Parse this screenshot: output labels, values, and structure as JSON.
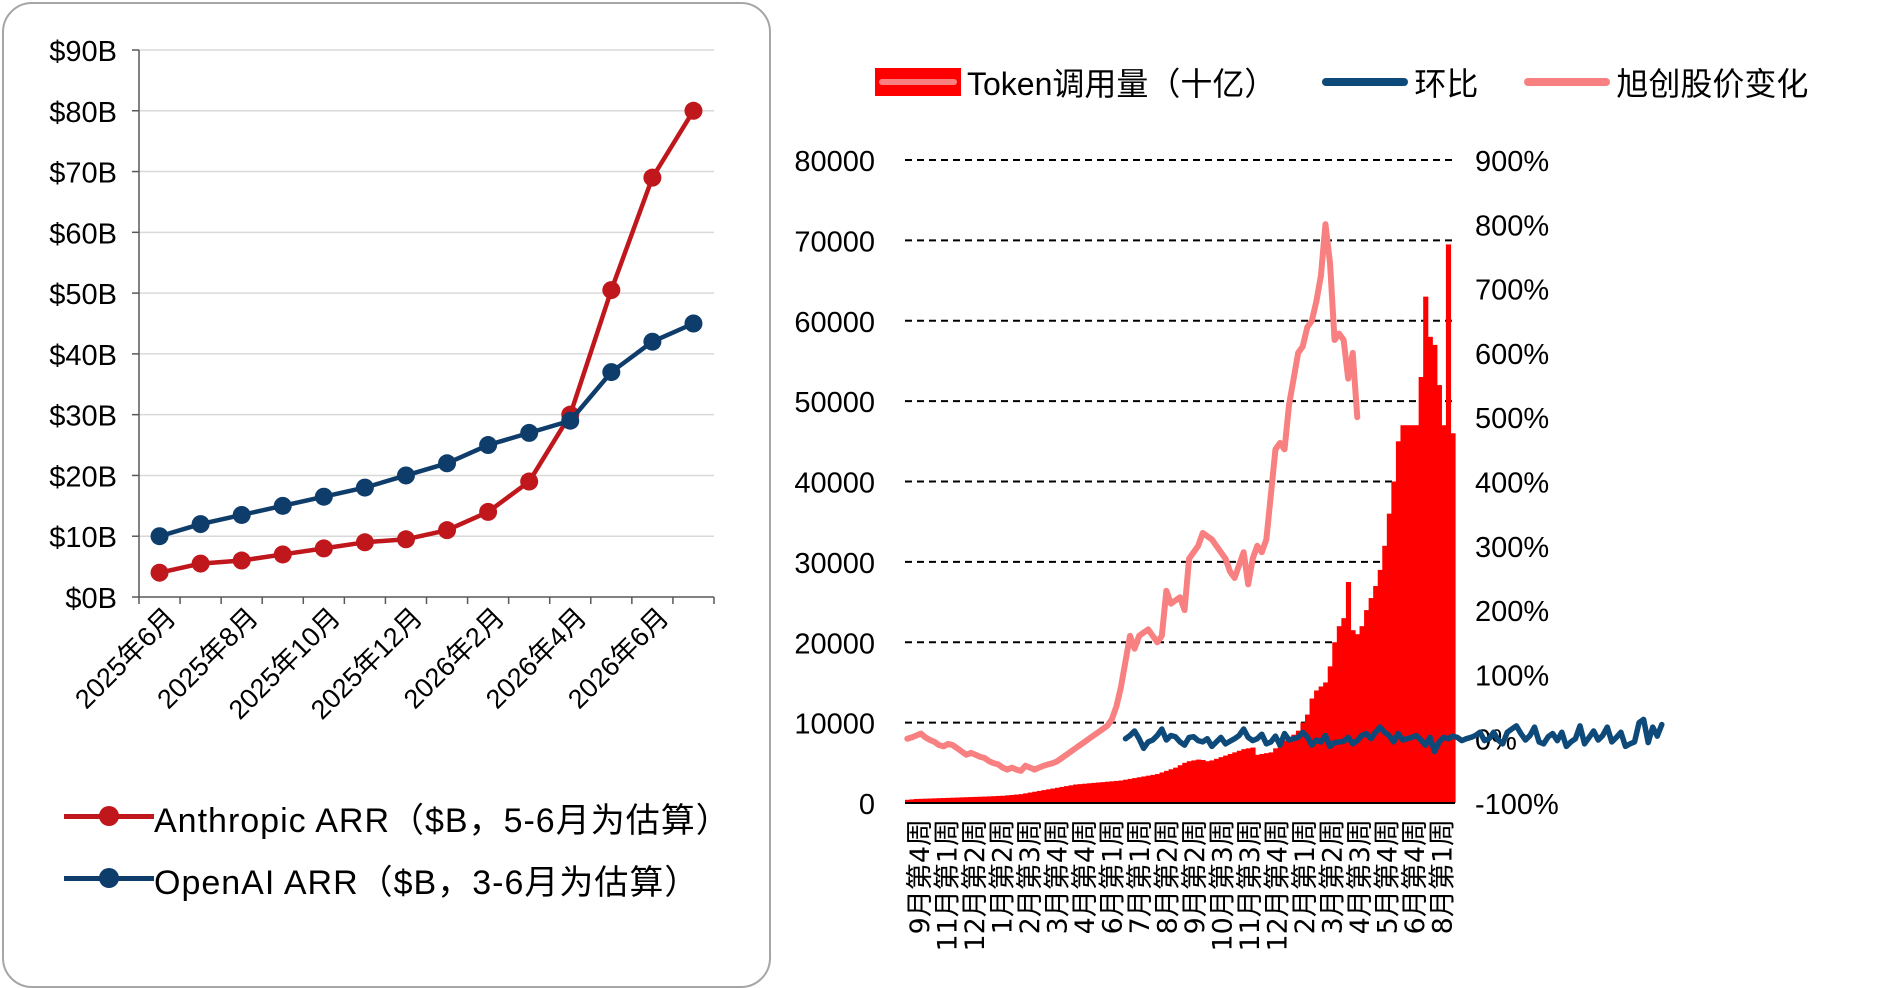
{
  "left_chart": {
    "legend": [
      {
        "label": "Anthropic ARR（$B，5-6月为估算）",
        "color": "#c0171d"
      },
      {
        "label": "OpenAI ARR（$B，3-6月为估算）",
        "color": "#0f3d6b"
      }
    ]
  },
  "right_chart": {
    "legend": [
      {
        "label": "Token调用量（十亿）",
        "color": "#ff0000",
        "kind": "bar"
      },
      {
        "label": "环比",
        "color": "#0d4a7a",
        "kind": "line"
      },
      {
        "label": "旭创股价变化",
        "color": "#f88080",
        "kind": "line"
      }
    ]
  },
  "chart_data": [
    {
      "type": "line",
      "x_tick_labels": [
        "2025年6月",
        "2025年8月",
        "2025年10月",
        "2025年12月",
        "2026年2月",
        "2026年4月",
        "2026年6月"
      ],
      "y_tick_labels": [
        "$0B",
        "$10B",
        "$20B",
        "$30B",
        "$40B",
        "$50B",
        "$60B",
        "$70B",
        "$80B",
        "$90B"
      ],
      "ylim": [
        0,
        90
      ],
      "grid": true,
      "legend_position": "bottom",
      "series": [
        {
          "name": "Anthropic ARR（$B，5-6月为估算）",
          "color": "#c0171d",
          "values": [
            4,
            5.5,
            6,
            7,
            8,
            9,
            9.5,
            11,
            14,
            19,
            30,
            50.5,
            69,
            80
          ]
        },
        {
          "name": "OpenAI ARR（$B，3-6月为估算）",
          "color": "#0f3d6b",
          "values": [
            10,
            12,
            13.5,
            15,
            16.5,
            18,
            20,
            22,
            25,
            27,
            29,
            37,
            42,
            45
          ]
        }
      ]
    },
    {
      "type": "bar",
      "x_tick_labels": [
        "9月第4周",
        "11月第1周",
        "12月第2周",
        "1月第2周",
        "2月第3周",
        "3月第4周",
        "4月第4周",
        "6月第1周",
        "7月第1周",
        "8月第2周",
        "9月第2周",
        "10月第3周",
        "11月第3周",
        "12月第4周",
        "2月第1周",
        "3月第2周",
        "4月第3周",
        "5月第4周",
        "6月第4周",
        "8月第1周"
      ],
      "y_tick_labels": [
        "0",
        "10000",
        "20000",
        "30000",
        "40000",
        "50000",
        "60000",
        "70000",
        "80000"
      ],
      "y2_tick_labels": [
        "-100%",
        "0%",
        "100%",
        "200%",
        "300%",
        "400%",
        "500%",
        "600%",
        "700%",
        "800%",
        "900%"
      ],
      "ylim": [
        0,
        80000
      ],
      "y2lim": [
        -100,
        900
      ],
      "grid": true,
      "legend_position": "top",
      "bars": {
        "name": "Token调用量（十亿）",
        "color": "#ff0000",
        "values": [
          400,
          450,
          500,
          520,
          540,
          560,
          580,
          600,
          620,
          640,
          660,
          680,
          700,
          720,
          740,
          760,
          780,
          800,
          820,
          850,
          880,
          900,
          950,
          1000,
          1050,
          1100,
          1200,
          1300,
          1400,
          1500,
          1600,
          1700,
          1800,
          1900,
          2000,
          2100,
          2200,
          2300,
          2350,
          2400,
          2450,
          2500,
          2550,
          2600,
          2650,
          2700,
          2750,
          2800,
          2900,
          3000,
          3100,
          3200,
          3300,
          3400,
          3500,
          3600,
          3800,
          4000,
          4200,
          4400,
          4700,
          5000,
          5200,
          5300,
          5400,
          5350,
          5200,
          5300,
          5500,
          5700,
          5900,
          6100,
          6300,
          6500,
          6700,
          6800,
          6900,
          6000,
          6100,
          6200,
          6300,
          6800,
          7300,
          7800,
          8000,
          8500,
          9000,
          10000,
          11000,
          13000,
          14000,
          14500,
          15000,
          17000,
          20000,
          22000,
          23000,
          27500,
          21500,
          21000,
          22000,
          24000,
          25500,
          27000,
          29000,
          32000,
          36000,
          40000,
          45000,
          47000,
          47000,
          47000,
          47000,
          53000,
          63000,
          58000,
          57000,
          52000,
          47000,
          69500,
          46000
        ]
      },
      "lines": [
        {
          "name": "环比",
          "color": "#0d4a7a",
          "start_index": 48,
          "values": [
            0,
            5,
            12,
            0,
            -15,
            -5,
            -2,
            5,
            15,
            -2,
            5,
            3,
            -5,
            -10,
            2,
            3,
            -3,
            -5,
            0,
            -12,
            -5,
            2,
            -8,
            -4,
            0,
            5,
            15,
            2,
            -3,
            0,
            7,
            -8,
            -5,
            4,
            -10,
            8,
            -2,
            0,
            2,
            10,
            3,
            -10,
            -2,
            -5,
            5,
            -12,
            -6,
            -5,
            -4,
            2,
            -8,
            -3,
            5,
            8,
            0,
            10,
            18,
            10,
            5,
            -5,
            8,
            -2,
            0,
            2,
            5,
            -2,
            -10,
            2,
            -20,
            -5,
            2,
            0,
            4,
            2,
            -3,
            0,
            2,
            5,
            10,
            -3,
            0,
            10,
            -2,
            -8,
            10,
            15,
            20,
            8,
            -2,
            5,
            18,
            -5,
            -8,
            3,
            8,
            -3,
            10,
            -12,
            -5,
            0,
            20,
            -8,
            2,
            12,
            -2,
            5,
            18,
            -5,
            2,
            10,
            -12,
            -8,
            -5,
            25,
            30,
            -6,
            18,
            4,
            22
          ]
        },
        {
          "name": "旭创股价变化",
          "color": "#f88080",
          "start_index": 0,
          "values": [
            0,
            2,
            5,
            8,
            2,
            -2,
            -5,
            -10,
            -12,
            -8,
            -10,
            -15,
            -20,
            -25,
            -22,
            -25,
            -28,
            -30,
            -35,
            -38,
            -40,
            -45,
            -48,
            -45,
            -48,
            -50,
            -42,
            -45,
            -48,
            -45,
            -42,
            -40,
            -38,
            -35,
            -30,
            -25,
            -20,
            -15,
            -10,
            -5,
            0,
            5,
            10,
            15,
            20,
            30,
            50,
            80,
            120,
            160,
            140,
            160,
            165,
            170,
            160,
            150,
            160,
            230,
            210,
            215,
            220,
            200,
            280,
            290,
            300,
            320,
            315,
            310,
            300,
            290,
            280,
            260,
            250,
            270,
            290,
            240,
            280,
            300,
            290,
            310,
            380,
            450,
            460,
            450,
            520,
            560,
            600,
            610,
            640,
            650,
            680,
            720,
            800,
            740,
            620,
            630,
            620,
            560,
            600,
            500
          ]
        }
      ]
    }
  ]
}
